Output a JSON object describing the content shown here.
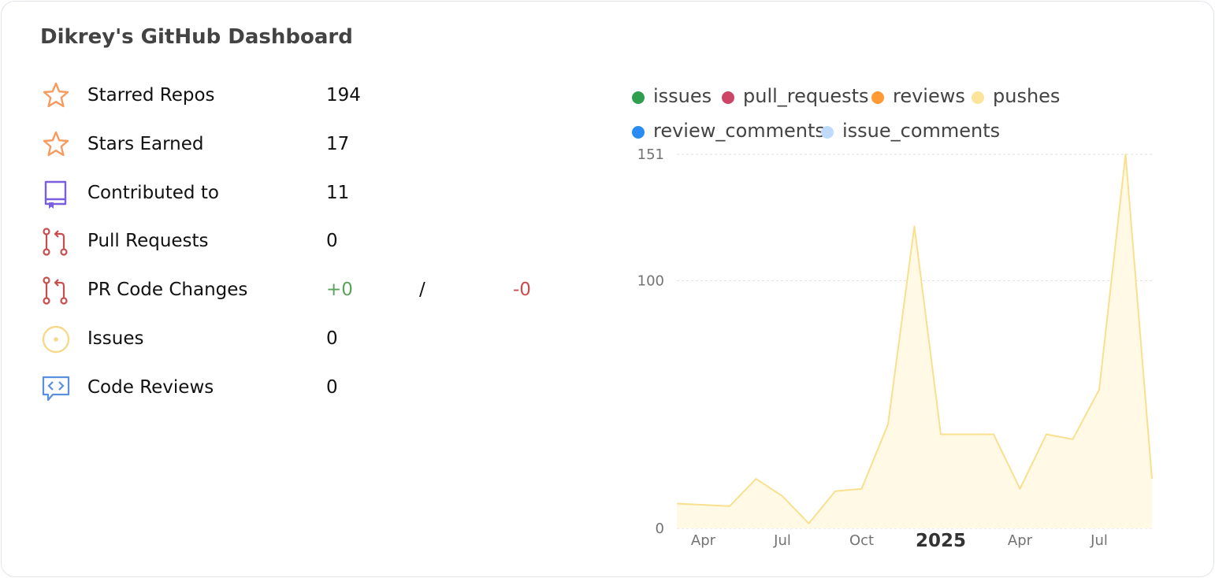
{
  "title": "Dikrey's GitHub Dashboard",
  "stats": [
    {
      "label": "Starred Repos",
      "value": "194",
      "icon": "star-icon",
      "color": "#f79a5e"
    },
    {
      "label": "Stars Earned",
      "value": "17",
      "icon": "star-icon",
      "color": "#f79a5e"
    },
    {
      "label": "Contributed to",
      "value": "11",
      "icon": "repo-icon",
      "color": "#7b5de0"
    },
    {
      "label": "Pull Requests",
      "value": "0",
      "icon": "pull-request-icon",
      "color": "#c94d4d"
    },
    {
      "label": "PR Code Changes",
      "additions": "+0",
      "separator": "/",
      "deletions": "-0",
      "icon": "pull-request-icon",
      "color": "#c94d4d"
    },
    {
      "label": "Issues",
      "value": "0",
      "icon": "issue-icon",
      "color": "#f6d98b"
    },
    {
      "label": "Code Reviews",
      "value": "0",
      "icon": "code-review-icon",
      "color": "#5a8fe0"
    }
  ],
  "colors": {
    "additions": "#5ba35b",
    "deletions": "#c94d4d",
    "pushes_line": "#f8e08e",
    "pushes_fill": "#fff9e6"
  },
  "chart_data": {
    "type": "area",
    "legend": [
      {
        "name": "issues",
        "color": "#2f9e4f"
      },
      {
        "name": "pull_requests",
        "color": "#cc4466"
      },
      {
        "name": "reviews",
        "color": "#ff9933"
      },
      {
        "name": "pushes",
        "color": "#fce49a"
      },
      {
        "name": "review_comments",
        "color": "#2a8cf0"
      },
      {
        "name": "issue_comments",
        "color": "#c0dafd"
      }
    ],
    "legend_position": "top",
    "x": [
      "2024-03",
      "2024-04",
      "2024-05",
      "2024-06",
      "2024-07",
      "2024-08",
      "2024-09",
      "2024-10",
      "2024-11",
      "2024-12",
      "2025-01",
      "2025-02",
      "2025-03",
      "2025-04",
      "2025-05",
      "2025-06",
      "2025-07",
      "2025-08",
      "2025-09"
    ],
    "series": [
      {
        "name": "pushes",
        "values": [
          10,
          9.5,
          9,
          20,
          13,
          2,
          15,
          16,
          42,
          122,
          38,
          38,
          38,
          16,
          38,
          36,
          56,
          151,
          20
        ]
      }
    ],
    "y_ticks": [
      "0",
      "100",
      "151"
    ],
    "ylim": [
      0,
      151
    ],
    "x_ticks": [
      {
        "label": "Apr",
        "x": "2024-04"
      },
      {
        "label": "Jul",
        "x": "2024-07"
      },
      {
        "label": "Oct",
        "x": "2024-10"
      },
      {
        "label": "2025",
        "x": "2025-01",
        "bold": true
      },
      {
        "label": "Apr",
        "x": "2025-04"
      },
      {
        "label": "Jul",
        "x": "2025-07"
      }
    ],
    "grid": true
  }
}
